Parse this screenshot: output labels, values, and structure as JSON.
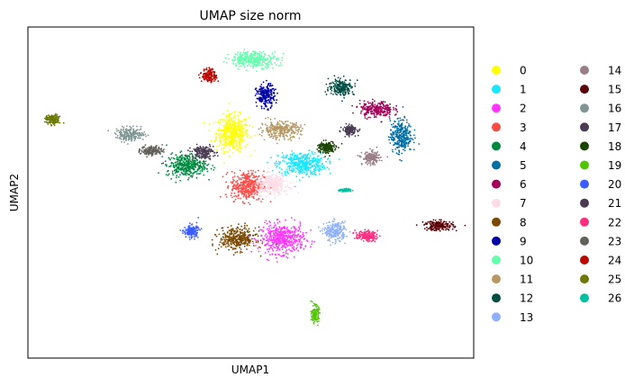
{
  "chart_data": {
    "type": "scatter",
    "title": "UMAP size norm",
    "xlabel": "UMAP1",
    "ylabel": "UMAP2",
    "xticks": [],
    "yticks": [],
    "grid": false,
    "legend_position": "right, outside plot, two columns",
    "clusters": [
      {
        "name": "0",
        "color": "#ffff00",
        "center": [
          -2.6,
          3.3
        ],
        "spread": [
          0.9,
          1.1
        ]
      },
      {
        "name": "1",
        "color": "#1ce6ff",
        "center": [
          1.6,
          1.2
        ],
        "spread": [
          1.3,
          0.7
        ]
      },
      {
        "name": "2",
        "color": "#ff34ff",
        "center": [
          0.4,
          -3.9
        ],
        "spread": [
          1.2,
          0.9
        ]
      },
      {
        "name": "3",
        "color": "#ff4a46",
        "center": [
          -1.7,
          -0.3
        ],
        "spread": [
          0.9,
          0.9
        ]
      },
      {
        "name": "4",
        "color": "#008941",
        "center": [
          -5.4,
          1.1
        ],
        "spread": [
          1.1,
          0.7
        ]
      },
      {
        "name": "5",
        "color": "#006fa6",
        "center": [
          7.6,
          3.1
        ],
        "spread": [
          0.6,
          1.0
        ]
      },
      {
        "name": "6",
        "color": "#a30059",
        "center": [
          6.1,
          4.9
        ],
        "spread": [
          0.9,
          0.5
        ]
      },
      {
        "name": "7",
        "color": "#ffdbe5",
        "center": [
          -0.2,
          -0.2
        ],
        "spread": [
          0.9,
          0.6
        ]
      },
      {
        "name": "8",
        "color": "#7a4900",
        "center": [
          -2.3,
          -3.9
        ],
        "spread": [
          1.0,
          0.7
        ]
      },
      {
        "name": "9",
        "color": "#0000a6",
        "center": [
          -0.6,
          5.8
        ],
        "spread": [
          0.5,
          0.7
        ]
      },
      {
        "name": "10",
        "color": "#63ffac",
        "center": [
          -1.3,
          8.3
        ],
        "spread": [
          1.3,
          0.5
        ]
      },
      {
        "name": "11",
        "color": "#b79762",
        "center": [
          0.3,
          3.5
        ],
        "spread": [
          1.1,
          0.5
        ]
      },
      {
        "name": "12",
        "color": "#004d43",
        "center": [
          4.0,
          6.4
        ],
        "spread": [
          0.7,
          0.5
        ]
      },
      {
        "name": "13",
        "color": "#8fb0ff",
        "center": [
          3.6,
          -3.4
        ],
        "spread": [
          0.6,
          0.6
        ]
      },
      {
        "name": "14",
        "color": "#997d87",
        "center": [
          5.8,
          1.6
        ],
        "spread": [
          0.5,
          0.4
        ]
      },
      {
        "name": "15",
        "color": "#5a0007",
        "center": [
          9.9,
          -3.0
        ],
        "spread": [
          0.8,
          0.3
        ]
      },
      {
        "name": "16",
        "color": "#809693",
        "center": [
          -8.8,
          3.2
        ],
        "spread": [
          0.8,
          0.4
        ]
      },
      {
        "name": "17",
        "color": "#4a3b53",
        "center": [
          -4.4,
          2.0
        ],
        "spread": [
          0.6,
          0.4
        ]
      },
      {
        "name": "18",
        "color": "#1b4400",
        "center": [
          3.1,
          2.3
        ],
        "spread": [
          0.5,
          0.4
        ]
      },
      {
        "name": "19",
        "color": "#4fc601",
        "center": [
          2.4,
          -9.0
        ],
        "spread": [
          0.2,
          0.5
        ]
      },
      {
        "name": "20",
        "color": "#3b5dff",
        "center": [
          -5.1,
          -3.4
        ],
        "spread": [
          0.4,
          0.4
        ]
      },
      {
        "name": "21",
        "color": "#4a3b53",
        "center": [
          4.5,
          3.5
        ],
        "spread": [
          0.4,
          0.3
        ]
      },
      {
        "name": "22",
        "color": "#ff2f80",
        "center": [
          5.5,
          -3.7
        ],
        "spread": [
          0.6,
          0.3
        ]
      },
      {
        "name": "23",
        "color": "#61615a",
        "center": [
          -7.5,
          2.1
        ],
        "spread": [
          0.6,
          0.3
        ]
      },
      {
        "name": "24",
        "color": "#ba0900",
        "center": [
          -4.0,
          7.2
        ],
        "spread": [
          0.4,
          0.4
        ]
      },
      {
        "name": "25",
        "color": "#6b7900",
        "center": [
          -13.5,
          4.2
        ],
        "spread": [
          0.4,
          0.3
        ]
      },
      {
        "name": "26",
        "color": "#00c2a0",
        "center": [
          4.2,
          -0.6
        ],
        "spread": [
          0.3,
          0.1
        ]
      }
    ],
    "xlim": [
      -15,
      12
    ],
    "ylim": [
      -12,
      10.5
    ]
  }
}
